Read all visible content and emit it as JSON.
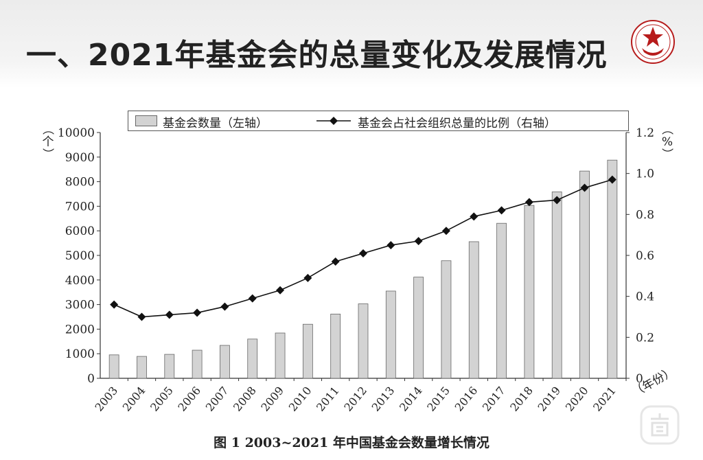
{
  "header": {
    "title": "一、2021年基金会的总量变化及发展情况"
  },
  "legend": {
    "bars_label": "基金会数量（左轴）",
    "line_label": "基金会占社会组织总量的比例（右轴）"
  },
  "caption": "图 1   2003~2021 年中国基金会数量增长情况",
  "colors": {
    "bar_fill": "#d3d3d3",
    "bar_stroke": "#666666",
    "line": "#111111"
  },
  "chart_data": {
    "type": "bar",
    "categories": [
      "2003",
      "2004",
      "2005",
      "2006",
      "2007",
      "2008",
      "2009",
      "2010",
      "2011",
      "2012",
      "2013",
      "2014",
      "2015",
      "2016",
      "2017",
      "2018",
      "2019",
      "2020",
      "2021"
    ],
    "series": [
      {
        "name": "基金会数量（左轴）",
        "type": "bar",
        "axis": "left",
        "values": [
          954,
          892,
          975,
          1144,
          1340,
          1597,
          1843,
          2200,
          2614,
          3029,
          3549,
          4117,
          4784,
          5559,
          6307,
          7034,
          7585,
          8432,
          8877
        ]
      },
      {
        "name": "基金会占社会组织总量的比例（右轴）",
        "type": "line",
        "axis": "right",
        "values": [
          0.36,
          0.3,
          0.31,
          0.32,
          0.35,
          0.39,
          0.43,
          0.49,
          0.57,
          0.61,
          0.65,
          0.67,
          0.72,
          0.79,
          0.82,
          0.86,
          0.87,
          0.93,
          0.97
        ]
      }
    ],
    "y_left": {
      "unit_label": "（个）",
      "ylim": [
        0,
        10000
      ],
      "ticks": [
        "0",
        "1000",
        "2000",
        "3000",
        "4000",
        "5000",
        "6000",
        "7000",
        "8000",
        "9000",
        "10000"
      ]
    },
    "y_right": {
      "unit_label": "（%）",
      "ylim": [
        0,
        1.2
      ],
      "ticks": [
        "0",
        "0.2",
        "0.4",
        "0.6",
        "0.8",
        "1.0",
        "1.2"
      ]
    },
    "x_unit_label": "（年份）",
    "grid": false,
    "legend_position": "top"
  }
}
